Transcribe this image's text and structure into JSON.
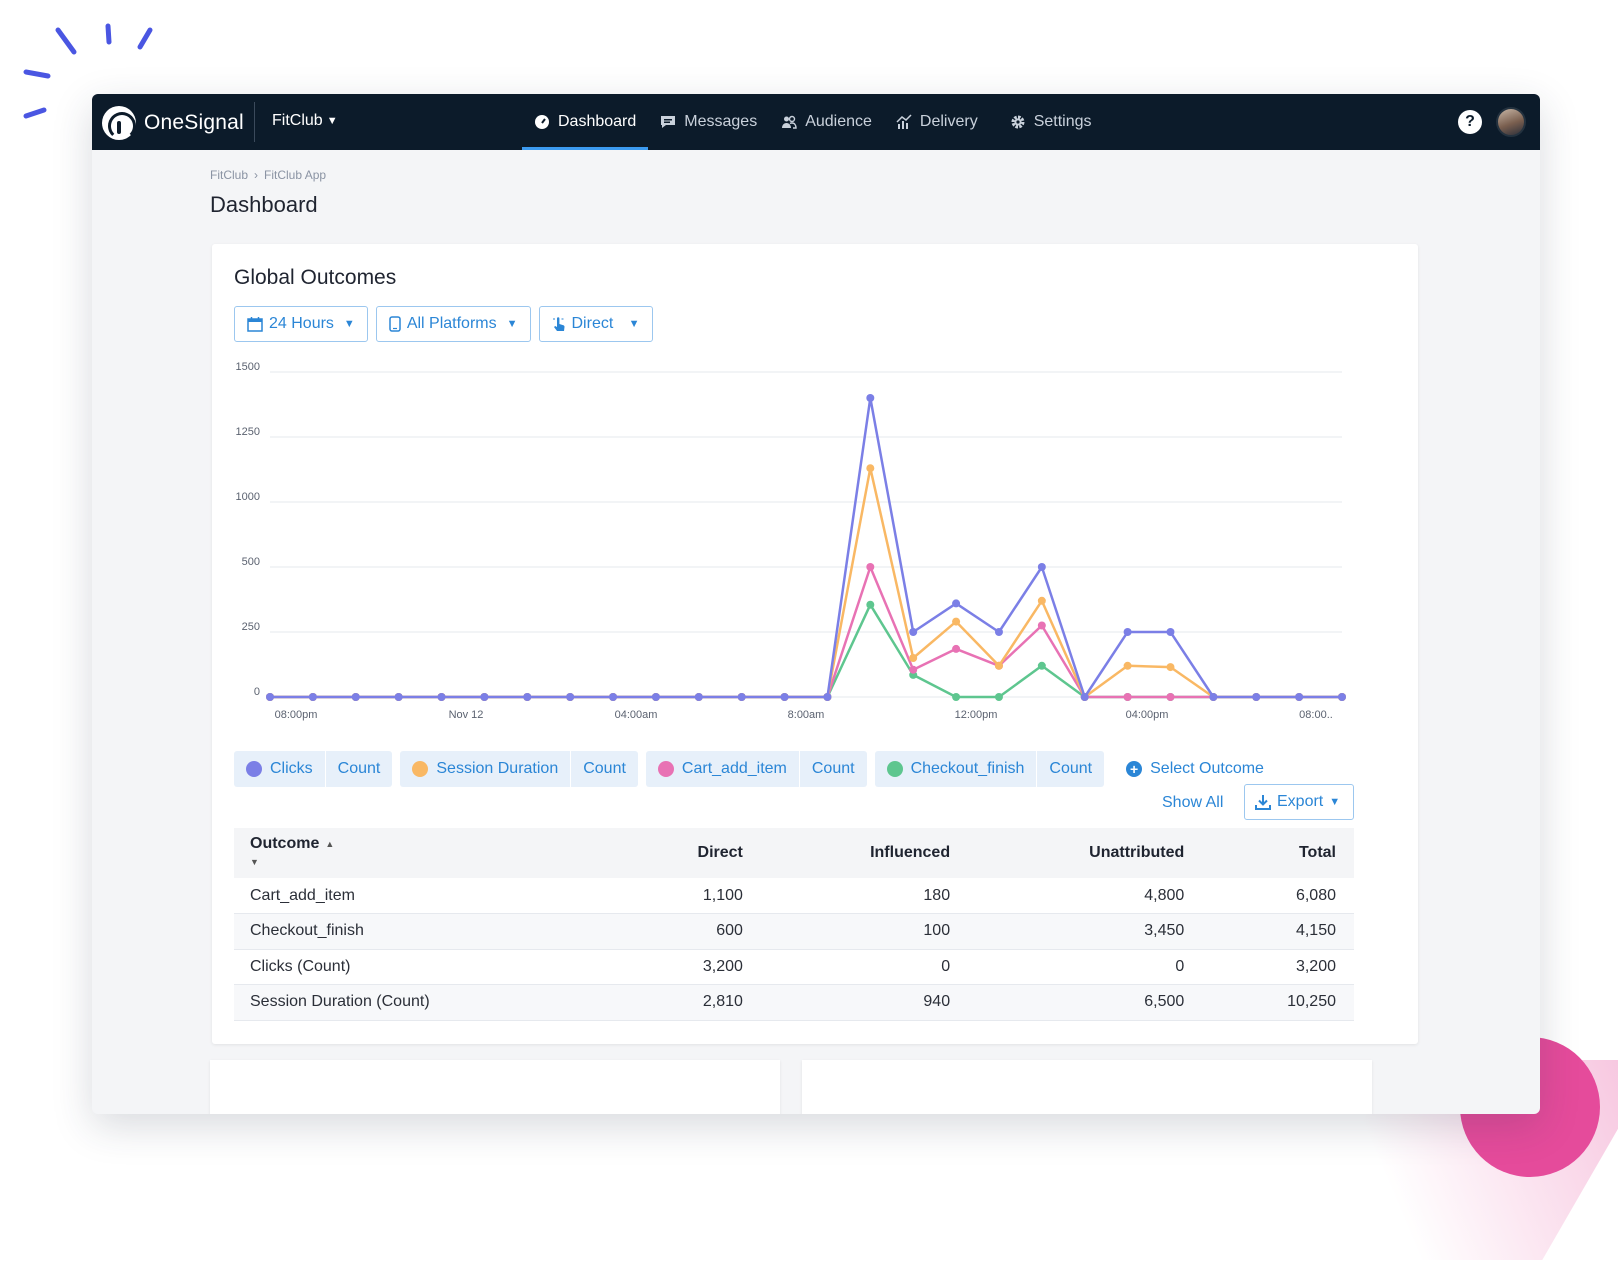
{
  "app": {
    "logo_text_light": "One",
    "logo_text_bold": "Signal",
    "app_name": "FitClub"
  },
  "nav": {
    "items": [
      {
        "label": "Dashboard",
        "icon": "dashboard-icon",
        "active": true
      },
      {
        "label": "Messages",
        "icon": "messages-icon",
        "active": false
      },
      {
        "label": "Audience",
        "icon": "audience-icon",
        "active": false
      },
      {
        "label": "Delivery",
        "icon": "delivery-icon",
        "active": false
      },
      {
        "label": "Settings",
        "icon": "settings-icon",
        "active": false
      }
    ],
    "help": "?"
  },
  "breadcrumb": [
    "FitClub",
    "FitClub App"
  ],
  "breadcrumb_sep": "›",
  "page_title": "Dashboard",
  "card": {
    "title": "Global Outcomes",
    "filters": {
      "time": "24 Hours",
      "platform": "All Platforms",
      "attribution": "Direct"
    }
  },
  "chart_data": {
    "type": "line",
    "x_ticks": [
      "08:00pm",
      "Nov 12",
      "04:00am",
      "8:00am",
      "12:00pm",
      "04:00pm",
      "08:00.."
    ],
    "y_ticks": [
      "1500",
      "1250",
      "1000",
      "500",
      "250",
      "0"
    ],
    "x": [
      0,
      1,
      2,
      3,
      4,
      5,
      6,
      7,
      8,
      9,
      10,
      11,
      12,
      13,
      14,
      15,
      16,
      17,
      18,
      19,
      20,
      21,
      22,
      23,
      24,
      25
    ],
    "series": [
      {
        "name": "Clicks",
        "color": "#7b7fe6",
        "values": [
          0,
          0,
          0,
          0,
          0,
          0,
          0,
          0,
          0,
          0,
          0,
          0,
          0,
          0,
          1400,
          250,
          360,
          250,
          500,
          0,
          250,
          250,
          0,
          0,
          0,
          0
        ]
      },
      {
        "name": "Session Duration",
        "color": "#f9b864",
        "values": [
          0,
          0,
          0,
          0,
          0,
          0,
          0,
          0,
          0,
          0,
          0,
          0,
          0,
          0,
          1130,
          150,
          290,
          120,
          370,
          0,
          120,
          115,
          0,
          0,
          0,
          0
        ]
      },
      {
        "name": "Cart_add_item",
        "color": "#e872b4",
        "values": [
          0,
          0,
          0,
          0,
          0,
          0,
          0,
          0,
          0,
          0,
          0,
          0,
          0,
          0,
          500,
          105,
          185,
          120,
          275,
          0,
          0,
          0,
          0,
          0,
          0,
          0
        ]
      },
      {
        "name": "Checkout_finish",
        "color": "#5ec68f",
        "values": [
          0,
          0,
          0,
          0,
          0,
          0,
          0,
          0,
          0,
          0,
          0,
          0,
          0,
          0,
          355,
          85,
          0,
          0,
          120,
          0,
          0,
          0,
          0,
          0,
          0,
          0
        ]
      }
    ]
  },
  "legend": {
    "chips": [
      {
        "name": "Clicks",
        "metric": "Count",
        "color": "#7b7fe6"
      },
      {
        "name": "Session Duration",
        "metric": "Count",
        "color": "#f9b864"
      },
      {
        "name": "Cart_add_item",
        "metric": "Count",
        "color": "#e872b4"
      },
      {
        "name": "Checkout_finish",
        "metric": "Count",
        "color": "#5ec68f"
      }
    ],
    "select_outcome": "Select Outcome"
  },
  "actions": {
    "show_all": "Show All",
    "export": "Export"
  },
  "table": {
    "headers": [
      "Outcome",
      "Direct",
      "Influenced",
      "Unattributed",
      "Total"
    ],
    "rows": [
      [
        "Cart_add_item",
        "1,100",
        "180",
        "4,800",
        "6,080"
      ],
      [
        "Checkout_finish",
        "600",
        "100",
        "3,450",
        "4,150"
      ],
      [
        "Clicks (Count)",
        "3,200",
        "0",
        "0",
        "3,200"
      ],
      [
        "Session Duration (Count)",
        "2,810",
        "940",
        "6,500",
        "10,250"
      ]
    ]
  },
  "colors": {
    "navbar": "#0c1b2a",
    "accent": "#2b86d6",
    "active_tab": "#3c9bf0",
    "decor_pink": "#e54b9b",
    "decor_blue": "#4a56e2"
  }
}
